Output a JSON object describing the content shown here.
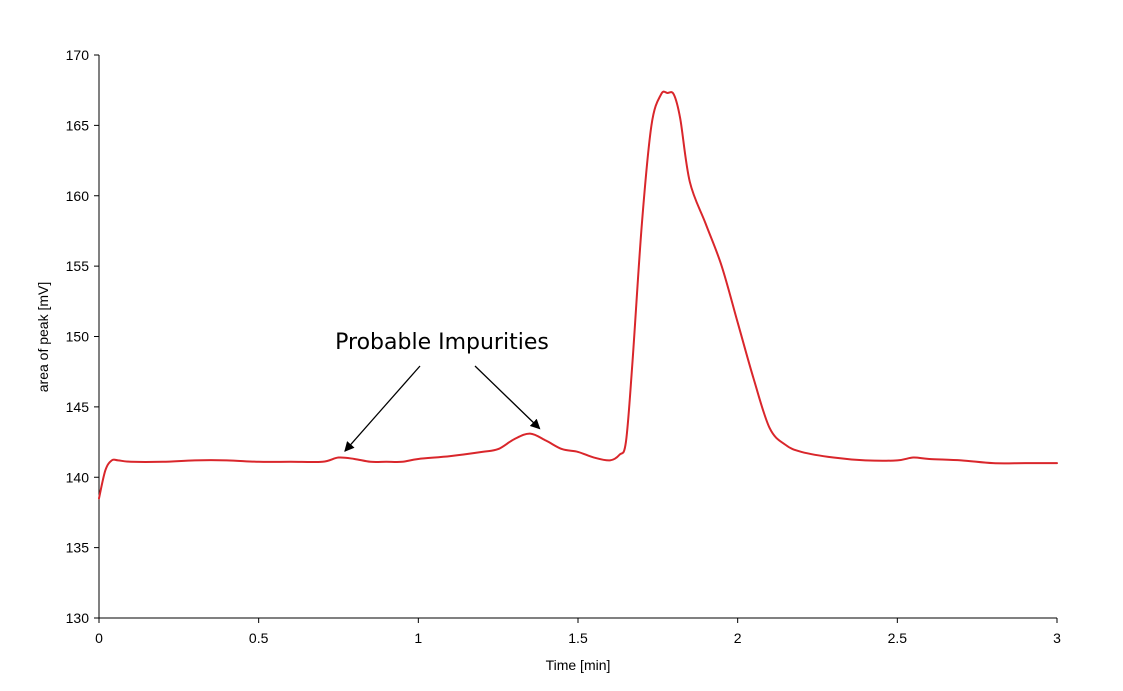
{
  "chart_data": {
    "type": "line",
    "title": "",
    "xlabel": "Time [min]",
    "ylabel": "area of peak [mV]",
    "xlim": [
      0,
      3
    ],
    "ylim": [
      130,
      170
    ],
    "x_ticks": [
      0,
      0.5,
      1,
      1.5,
      2,
      2.5,
      3
    ],
    "x_tick_labels": [
      "0",
      "0.5",
      "1",
      "1.5",
      "2",
      "2.5",
      "3"
    ],
    "y_ticks": [
      130,
      135,
      140,
      145,
      150,
      155,
      160,
      165,
      170
    ],
    "y_tick_labels": [
      "130",
      "135",
      "140",
      "145",
      "150",
      "155",
      "160",
      "165",
      "170"
    ],
    "grid": false,
    "legend": "none",
    "series": [
      {
        "color": "#d9262b",
        "x": [
          0,
          0.02,
          0.04,
          0.06,
          0.1,
          0.2,
          0.3,
          0.4,
          0.5,
          0.6,
          0.7,
          0.75,
          0.8,
          0.85,
          0.9,
          0.95,
          1.0,
          1.1,
          1.2,
          1.25,
          1.3,
          1.35,
          1.4,
          1.45,
          1.5,
          1.55,
          1.6,
          1.63,
          1.65,
          1.67,
          1.7,
          1.73,
          1.76,
          1.78,
          1.8,
          1.82,
          1.85,
          1.9,
          1.95,
          2.0,
          2.05,
          2.1,
          2.15,
          2.2,
          2.3,
          2.4,
          2.5,
          2.55,
          2.6,
          2.7,
          2.8,
          2.9,
          3.0
        ],
        "y": [
          138.5,
          140.5,
          141.2,
          141.2,
          141.1,
          141.1,
          141.2,
          141.2,
          141.1,
          141.1,
          141.1,
          141.4,
          141.3,
          141.1,
          141.1,
          141.1,
          141.3,
          141.5,
          141.8,
          142.0,
          142.7,
          143.1,
          142.6,
          142.0,
          141.8,
          141.4,
          141.2,
          141.6,
          142.5,
          148.0,
          158.0,
          165.0,
          167.2,
          167.3,
          167.2,
          165.5,
          161.0,
          158.0,
          155.0,
          151.0,
          147.0,
          143.5,
          142.3,
          141.8,
          141.4,
          141.2,
          141.2,
          141.4,
          141.3,
          141.2,
          141.0,
          141.0,
          141.0
        ]
      }
    ],
    "annotations": [
      {
        "text": "Probable Impurities",
        "arrows_to": [
          {
            "x": 0.77,
            "y": 141.5
          },
          {
            "x": 1.38,
            "y": 143.1
          }
        ]
      }
    ]
  }
}
